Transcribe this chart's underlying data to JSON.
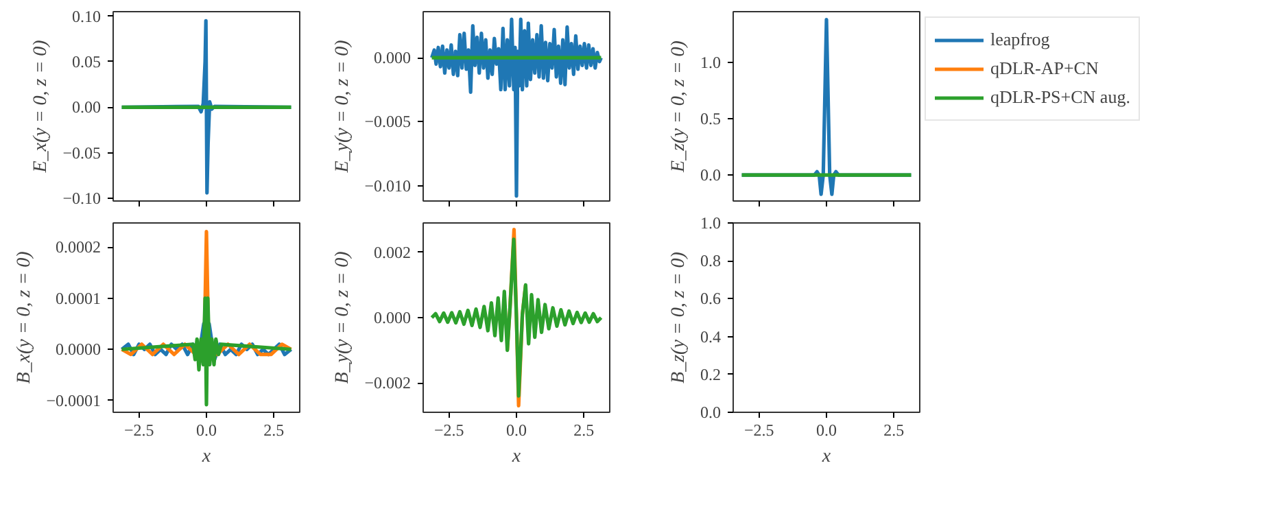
{
  "chart_data": [
    {
      "type": "line",
      "ylabel": "E_x(y = 0, z = 0)",
      "xlim": [
        -3.46,
        3.46
      ],
      "xticks": [
        {
          "value": -2.5,
          "label": null
        },
        {
          "value": 0,
          "label": null
        },
        {
          "value": 2.5,
          "label": null
        }
      ],
      "ylim": [
        -0.103,
        0.105
      ],
      "yticks": [
        {
          "value": -0.1,
          "label": "−0.10"
        },
        {
          "value": -0.05,
          "label": "−0.05"
        },
        {
          "value": 0,
          "label": "0.00"
        },
        {
          "value": 0.05,
          "label": "0.05"
        },
        {
          "value": 0.1,
          "label": "0.10"
        }
      ],
      "tick_labels": "y",
      "grid": false,
      "series": [
        {
          "color": "#1f77b4",
          "x": [
            -3.14,
            -0.3,
            -0.2,
            -0.12,
            -0.05,
            -0.02,
            0.02,
            0.06,
            0.12,
            0.2,
            0.3,
            3.14
          ],
          "values": [
            0,
            0.001,
            -0.005,
            0.004,
            0.05,
            0.095,
            -0.094,
            -0.04,
            0.006,
            -0.002,
            0.001,
            0
          ]
        },
        {
          "color": "#2ca02c",
          "x": [
            -3.14,
            0,
            3.14
          ],
          "values": [
            0,
            0,
            0
          ]
        }
      ]
    },
    {
      "type": "line",
      "ylabel": "E_y(y = 0, z = 0)",
      "xlim": [
        -3.46,
        3.46
      ],
      "xticks": [
        {
          "value": -2.5,
          "label": null
        },
        {
          "value": 0,
          "label": null
        },
        {
          "value": 2.5,
          "label": null
        }
      ],
      "ylim": [
        -0.0112,
        0.0036
      ],
      "yticks": [
        {
          "value": -0.01,
          "label": "−0.010"
        },
        {
          "value": -0.005,
          "label": "−0.005"
        },
        {
          "value": 0,
          "label": "0.000"
        }
      ],
      "tick_labels": "y",
      "grid": false,
      "series": [
        {
          "color": "#1f77b4",
          "x": [
            -3.14,
            -3.05,
            -2.98,
            -2.9,
            -2.82,
            -2.74,
            -2.66,
            -2.58,
            -2.5,
            -2.42,
            -2.34,
            -2.26,
            -2.18,
            -2.1,
            -2.02,
            -1.94,
            -1.86,
            -1.78,
            -1.7,
            -1.62,
            -1.54,
            -1.46,
            -1.38,
            -1.3,
            -1.22,
            -1.14,
            -1.06,
            -0.98,
            -0.9,
            -0.82,
            -0.74,
            -0.66,
            -0.58,
            -0.5,
            -0.42,
            -0.34,
            -0.26,
            -0.18,
            -0.1,
            -0.05,
            0.0,
            0.05,
            0.1,
            0.16,
            0.22,
            0.3,
            0.38,
            0.44,
            0.52,
            0.6,
            0.68,
            0.76,
            0.84,
            0.92,
            1.0,
            1.08,
            1.16,
            1.24,
            1.32,
            1.4,
            1.48,
            1.56,
            1.64,
            1.72,
            1.8,
            1.88,
            1.96,
            2.04,
            2.12,
            2.2,
            2.28,
            2.36,
            2.44,
            2.52,
            2.6,
            2.68,
            2.76,
            2.84,
            2.92,
            3.0,
            3.08,
            3.14
          ],
          "values": [
            0,
            0.0006,
            -0.0005,
            0.0008,
            -0.0007,
            0.0009,
            -0.0012,
            0.0006,
            -0.0008,
            0.001,
            -0.0013,
            0.0005,
            -0.0014,
            0.0018,
            -0.0008,
            0.0019,
            -0.0009,
            0.0006,
            -0.0027,
            0.0025,
            -0.0006,
            0.0016,
            -0.0012,
            0.0019,
            -0.0008,
            0.0014,
            -0.0016,
            0.0006,
            -0.0013,
            0.0015,
            -0.0005,
            0.0007,
            -0.0025,
            0.0023,
            -0.0025,
            0.0014,
            -0.0022,
            0.003,
            -0.0025,
            0.0008,
            -0.0108,
            0.0005,
            -0.0022,
            0.003,
            -0.0025,
            0.0021,
            -0.0022,
            0.0027,
            -0.0017,
            0.0014,
            -0.0012,
            0.0018,
            -0.0015,
            0.0025,
            -0.0016,
            0.0012,
            -0.0018,
            0.0011,
            -0.0008,
            0.0022,
            -0.0015,
            0.0009,
            -0.002,
            0.0014,
            -0.0021,
            0.0024,
            -0.0008,
            0.0011,
            -0.0013,
            0.0017,
            -0.0009,
            0.0009,
            -0.0006,
            0.0011,
            -0.0008,
            0.001,
            -0.0006,
            0.0007,
            -0.0008,
            0.0004,
            -0.0003,
            0
          ]
        },
        {
          "color": "#2ca02c",
          "x": [
            -3.14,
            0,
            3.14
          ],
          "values": [
            0,
            0,
            0
          ]
        }
      ]
    },
    {
      "type": "line",
      "ylabel": "E_z(y = 0, z = 0)",
      "xlim": [
        -3.46,
        3.46
      ],
      "xticks": [
        {
          "value": -2.5,
          "label": null
        },
        {
          "value": 0,
          "label": null
        },
        {
          "value": 2.5,
          "label": null
        }
      ],
      "ylim": [
        -0.23,
        1.45
      ],
      "yticks": [
        {
          "value": 0,
          "label": "0.0"
        },
        {
          "value": 0.5,
          "label": "0.5"
        },
        {
          "value": 1,
          "label": "1.0"
        }
      ],
      "tick_labels": "y",
      "grid": false,
      "legend": "right",
      "series": [
        {
          "name": "leapfrog",
          "color": "#1f77b4",
          "x": [
            -3.14,
            -0.45,
            -0.35,
            -0.27,
            -0.2,
            -0.12,
            0,
            0.12,
            0.2,
            0.27,
            0.35,
            0.45,
            3.14
          ],
          "values": [
            0,
            0,
            0.03,
            0,
            -0.17,
            0,
            1.38,
            0,
            -0.17,
            0,
            0.03,
            0,
            0
          ]
        },
        {
          "name": "qDLR-AP+CN",
          "color": "#ff7f0e"
        },
        {
          "name": "qDLR-PS+CN aug.",
          "color": "#2ca02c",
          "x": [
            -3.14,
            0,
            3.14
          ],
          "values": [
            0,
            0,
            0
          ]
        }
      ]
    },
    {
      "type": "line",
      "ylabel": "B_x(y = 0, z = 0)",
      "xlabel": "x",
      "xlim": [
        -3.46,
        3.46
      ],
      "xticks": [
        {
          "value": -2.5,
          "label": "−2.5"
        },
        {
          "value": 0,
          "label": "0.0"
        },
        {
          "value": 2.5,
          "label": "2.5"
        }
      ],
      "ylim": [
        -0.000123,
        0.000247
      ],
      "yticks": [
        {
          "value": -0.0001,
          "label": "−0.0001"
        },
        {
          "value": 0,
          "label": "0.0000"
        },
        {
          "value": 0.0001,
          "label": "0.0001"
        },
        {
          "value": 0.0002,
          "label": "0.0002"
        }
      ],
      "grid": false,
      "series": [
        {
          "color": "#1f77b4",
          "x": [
            -3.14,
            -2.9,
            -2.7,
            -2.5,
            -2.3,
            -2.1,
            -1.9,
            -1.7,
            -1.5,
            -1.3,
            -1.1,
            -0.9,
            -0.7,
            -0.5,
            -0.3,
            -0.1,
            0,
            0.1,
            0.3,
            0.5,
            0.7,
            0.9,
            1.1,
            1.3,
            1.5,
            1.7,
            1.9,
            2.1,
            2.3,
            2.5,
            2.7,
            2.9,
            3.14
          ],
          "values": [
            0,
            1e-05,
            -1e-05,
            1e-05,
            0,
            1e-05,
            -1e-05,
            0,
            -1e-05,
            1e-05,
            0,
            1e-05,
            -1e-05,
            1e-05,
            -2e-05,
            5e-05,
            0,
            5e-05,
            -2e-05,
            1e-05,
            -1e-05,
            0,
            -1e-05,
            1e-05,
            0,
            1e-05,
            -1e-05,
            0,
            -1e-05,
            0,
            1e-05,
            -1e-05,
            0
          ]
        },
        {
          "color": "#ff7f0e",
          "x": [
            -3.14,
            -2.8,
            -2.4,
            -2.0,
            -1.6,
            -1.2,
            -0.8,
            -0.4,
            -0.08,
            0,
            0.08,
            0.4,
            0.8,
            1.2,
            1.6,
            2.0,
            2.4,
            2.8,
            3.14
          ],
          "values": [
            0,
            -1e-05,
            1e-05,
            -1e-05,
            1e-05,
            -1e-05,
            1e-05,
            -1e-05,
            1e-05,
            0.00023,
            1e-05,
            -1e-05,
            1e-05,
            -1e-05,
            1e-05,
            -1e-05,
            -1e-05,
            1e-05,
            0
          ]
        },
        {
          "color": "#2ca02c",
          "x": [
            -3.14,
            -0.5,
            -0.42,
            -0.35,
            -0.28,
            -0.2,
            -0.12,
            -0.05,
            0,
            0.05,
            0.12,
            0.2,
            0.28,
            0.35,
            0.45,
            0.55,
            3.14
          ],
          "values": [
            0,
            1e-05,
            -2e-05,
            2e-05,
            -4e-05,
            2e-05,
            -3e-05,
            0.0001,
            -0.000108,
            0.0001,
            -3e-05,
            2e-05,
            -3e-05,
            2e-05,
            -1e-05,
            1e-05,
            0
          ]
        }
      ]
    },
    {
      "type": "line",
      "ylabel": "B_y(y = 0, z = 0)",
      "xlabel": "x",
      "xlim": [
        -3.46,
        3.46
      ],
      "xticks": [
        {
          "value": -2.5,
          "label": "−2.5"
        },
        {
          "value": 0,
          "label": "0.0"
        },
        {
          "value": 2.5,
          "label": "2.5"
        }
      ],
      "ylim": [
        -0.0029,
        0.0029
      ],
      "yticks": [
        {
          "value": -0.002,
          "label": "−0.002"
        },
        {
          "value": 0,
          "label": "0.000"
        },
        {
          "value": 0.002,
          "label": "0.002"
        }
      ],
      "grid": false,
      "series": [
        {
          "color": "#ff7f0e",
          "x": [
            -0.34,
            -0.24,
            -0.09,
            0,
            0.08,
            0.22,
            0.34
          ],
          "values": [
            -0.001,
            0.0003,
            0.0027,
            0,
            -0.0027,
            0.0001,
            0.001
          ]
        },
        {
          "color": "#2ca02c",
          "x": [
            -3.14,
            -3.0,
            -2.85,
            -2.7,
            -2.55,
            -2.4,
            -2.25,
            -2.1,
            -1.95,
            -1.8,
            -1.65,
            -1.5,
            -1.35,
            -1.2,
            -1.06,
            -0.93,
            -0.8,
            -0.68,
            -0.56,
            -0.45,
            -0.34,
            -0.24,
            -0.1,
            0,
            0.08,
            0.22,
            0.34,
            0.45,
            0.56,
            0.68,
            0.8,
            0.93,
            1.06,
            1.2,
            1.35,
            1.5,
            1.65,
            1.8,
            1.95,
            2.1,
            2.25,
            2.4,
            2.55,
            2.7,
            2.85,
            3.0,
            3.14
          ],
          "values": [
            0,
            0.00012,
            -0.00012,
            0.00014,
            -0.00014,
            0.00015,
            -0.00016,
            0.00018,
            -0.0002,
            0.00022,
            -0.00024,
            0.00026,
            -0.0003,
            0.00034,
            -0.0004,
            0.00045,
            -0.00055,
            0.0006,
            -0.0007,
            0.0008,
            -0.001,
            0.0003,
            0.0024,
            0,
            -0.0024,
            0.0001,
            0.001,
            -0.0008,
            0.0007,
            -0.0006,
            0.00055,
            -0.00045,
            0.0004,
            -0.00034,
            0.0003,
            -0.00026,
            0.00024,
            -0.00022,
            0.0002,
            -0.00018,
            0.00016,
            -0.00015,
            0.00014,
            -0.00014,
            0.00012,
            -0.00012,
            0
          ]
        }
      ]
    },
    {
      "type": "line",
      "ylabel": "B_z(y = 0, z = 0)",
      "xlabel": "x",
      "xlim": [
        -3.46,
        3.46
      ],
      "xticks": [
        {
          "value": -2.5,
          "label": "−2.5"
        },
        {
          "value": 0,
          "label": "0.0"
        },
        {
          "value": 2.5,
          "label": "2.5"
        }
      ],
      "ylim": [
        0,
        1
      ],
      "yticks": [
        {
          "value": 0,
          "label": "0.0"
        },
        {
          "value": 0.2,
          "label": "0.2"
        },
        {
          "value": 0.4,
          "label": "0.4"
        },
        {
          "value": 0.6,
          "label": "0.6"
        },
        {
          "value": 0.8,
          "label": "0.8"
        },
        {
          "value": 1,
          "label": "1.0"
        }
      ],
      "grid": false
    }
  ]
}
